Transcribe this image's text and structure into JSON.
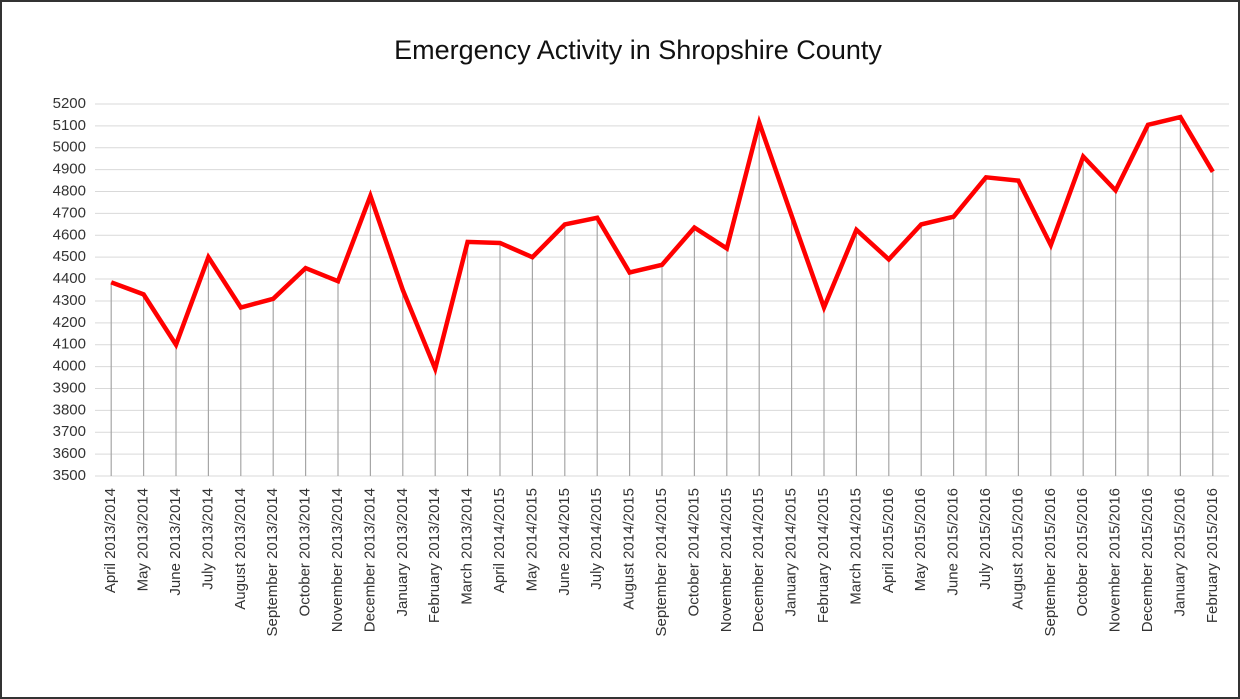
{
  "chart_data": {
    "type": "line",
    "title": "Emergency Activity in Shropshire County",
    "categories": [
      "April 2013/2014",
      "May 2013/2014",
      "June 2013/2014",
      "July 2013/2014",
      "August 2013/2014",
      "September 2013/2014",
      "October 2013/2014",
      "November 2013/2014",
      "December 2013/2014",
      "January 2013/2014",
      "February 2013/2014",
      "March 2013/2014",
      "April 2014/2015",
      "May 2014/2015",
      "June 2014/2015",
      "July 2014/2015",
      "August 2014/2015",
      "September 2014/2015",
      "October 2014/2015",
      "November 2014/2015",
      "December 2014/2015",
      "January 2014/2015",
      "February 2014/2015",
      "March 2014/2015",
      "April 2015/2016",
      "May 2015/2016",
      "June 2015/2016",
      "July 2015/2016",
      "August 2015/2016",
      "September 2015/2016",
      "October 2015/2016",
      "November 2015/2016",
      "December 2015/2016",
      "January 2015/2016",
      "February 2015/2016"
    ],
    "series": [
      {
        "color": "#ff0000",
        "values": [
          4385,
          4330,
          4100,
          4500,
          4270,
          4310,
          4450,
          4390,
          4780,
          4350,
          3990,
          4570,
          4565,
          4500,
          4650,
          4680,
          4430,
          4465,
          4635,
          4540,
          5115,
          4690,
          4270,
          4625,
          4490,
          4650,
          4685,
          4865,
          4850,
          4555,
          4960,
          4805,
          5105,
          5140,
          4890
        ]
      }
    ],
    "ylim": [
      3500,
      5200
    ],
    "yticks": [
      3500,
      3600,
      3700,
      3800,
      3900,
      4000,
      4100,
      4200,
      4300,
      4400,
      4500,
      4600,
      4700,
      4800,
      4900,
      5000,
      5100,
      5200
    ],
    "grid": true,
    "drop_lines": true
  }
}
